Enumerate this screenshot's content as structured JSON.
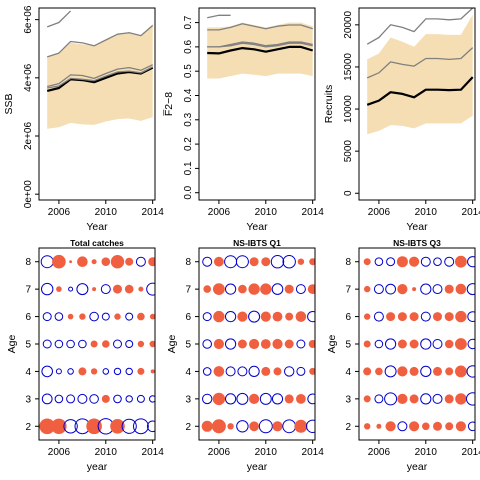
{
  "colors": {
    "band": "#f5deb3",
    "median": "#000000",
    "percentile": "#808080",
    "positive_bubble": "#f06040",
    "negative_bubble": "#0000cc",
    "axis": "#000000",
    "background": "#ffffff"
  },
  "chart_data": [
    {
      "type": "area",
      "xlabel": "Year",
      "ylabel": "SSB",
      "x": [
        2005,
        2006,
        2007,
        2008,
        2009,
        2010,
        2011,
        2012,
        2013,
        2014
      ],
      "xlim": [
        2004.3,
        2014.2
      ],
      "ylim": [
        -200000,
        6400000
      ],
      "xticks": [
        2006,
        2010,
        2014
      ],
      "yticks": [
        0,
        2000000,
        4000000,
        6000000
      ],
      "ytick_labels": [
        "0e+00",
        "2e+06",
        "4e+06",
        "6e+06"
      ],
      "ytick_rotated": true,
      "band_lower": [
        2250000,
        2300000,
        2450000,
        2400000,
        2380000,
        2500000,
        2580000,
        2600000,
        2520000,
        2650000
      ],
      "band_upper": [
        4700000,
        4850000,
        5200000,
        5150000,
        5100000,
        5300000,
        5500000,
        5550000,
        5450000,
        5850000
      ],
      "series": [
        {
          "role": "median",
          "values": [
            3550000,
            3650000,
            3950000,
            3920000,
            3850000,
            4000000,
            4150000,
            4200000,
            4150000,
            4350000
          ]
        },
        {
          "role": "p05",
          "values": [
            3700000,
            3800000,
            4100000,
            4080000,
            3980000,
            4150000,
            4300000,
            4350000,
            4260000,
            4450000
          ]
        },
        {
          "role": "p95",
          "values": [
            3650000,
            3720000,
            3980000,
            3950000,
            3900000,
            4060000,
            4200000,
            4230000,
            4170000,
            4380000
          ]
        },
        {
          "role": "high",
          "values": [
            4720000,
            4850000,
            5250000,
            5200000,
            5100000,
            5300000,
            5500000,
            5550000,
            5450000,
            5800000
          ]
        },
        {
          "role": "outlier",
          "values": [
            5750000,
            5900000,
            6300000,
            null,
            null,
            null,
            null,
            null,
            null,
            null
          ]
        }
      ]
    },
    {
      "type": "area",
      "xlabel": "Year",
      "ylabel": "F̅2−8",
      "x": [
        2005,
        2006,
        2007,
        2008,
        2009,
        2010,
        2011,
        2012,
        2013,
        2014
      ],
      "xlim": [
        2004.3,
        2014.2
      ],
      "ylim": [
        -0.03,
        0.76
      ],
      "xticks": [
        2006,
        2010,
        2014
      ],
      "yticks": [
        0.0,
        0.1,
        0.2,
        0.3,
        0.4,
        0.5,
        0.6,
        0.7
      ],
      "ytick_labels": [
        "0.0",
        "0.1",
        "0.2",
        "0.3",
        "0.4",
        "0.5",
        "0.6",
        "0.7"
      ],
      "ytick_rotated": true,
      "band_lower": [
        0.47,
        0.47,
        0.48,
        0.49,
        0.485,
        0.48,
        0.49,
        0.49,
        0.49,
        0.48
      ],
      "band_upper": [
        0.68,
        0.68,
        0.685,
        0.7,
        0.69,
        0.68,
        0.69,
        0.7,
        0.7,
        0.685
      ],
      "series": [
        {
          "role": "median",
          "values": [
            0.575,
            0.573,
            0.585,
            0.595,
            0.59,
            0.58,
            0.59,
            0.6,
            0.6,
            0.585
          ]
        },
        {
          "role": "p05",
          "values": [
            0.6,
            0.6,
            0.61,
            0.62,
            0.615,
            0.605,
            0.61,
            0.62,
            0.62,
            0.61
          ]
        },
        {
          "role": "p95",
          "values": [
            0.6,
            0.6,
            0.605,
            0.615,
            0.61,
            0.6,
            0.605,
            0.615,
            0.615,
            0.605
          ]
        },
        {
          "role": "high",
          "values": [
            0.67,
            0.67,
            0.68,
            0.695,
            0.685,
            0.675,
            0.685,
            0.69,
            0.69,
            0.675
          ]
        },
        {
          "role": "outlier",
          "values": [
            0.72,
            0.73,
            0.73,
            null,
            null,
            null,
            null,
            null,
            null,
            null
          ]
        }
      ]
    },
    {
      "type": "area",
      "xlabel": "Year",
      "ylabel": "Recruits",
      "x": [
        2005,
        2006,
        2007,
        2008,
        2009,
        2010,
        2011,
        2012,
        2013,
        2014
      ],
      "xlim": [
        2004.3,
        2014.2
      ],
      "ylim": [
        -800,
        22000
      ],
      "xticks": [
        2006,
        2010,
        2014
      ],
      "yticks": [
        0,
        5000,
        10000,
        15000,
        20000
      ],
      "ytick_labels": [
        "0",
        "5000",
        "10000",
        "15000",
        "20000"
      ],
      "ytick_rotated": true,
      "band_lower": [
        7000,
        7400,
        8100,
        8000,
        7700,
        8300,
        8300,
        8300,
        8300,
        9200
      ],
      "band_upper": [
        15900,
        16600,
        18500,
        18000,
        17400,
        18900,
        18900,
        18800,
        18800,
        21200
      ],
      "series": [
        {
          "role": "median",
          "values": [
            10500,
            11000,
            12000,
            11800,
            11400,
            12300,
            12300,
            12250,
            12300,
            13800
          ]
        },
        {
          "role": "p05",
          "values": [
            13700,
            14300,
            15600,
            15300,
            15100,
            16000,
            16000,
            15900,
            16000,
            17300
          ]
        },
        {
          "role": "high",
          "values": [
            17700,
            18500,
            20000,
            19700,
            19200,
            20700,
            20700,
            20600,
            20700,
            22000
          ]
        }
      ]
    },
    {
      "type": "scatter",
      "title": "Total catches",
      "xlabel": "year",
      "ylabel": "Age",
      "x": [
        2005,
        2006,
        2007,
        2008,
        2009,
        2010,
        2011,
        2012,
        2013,
        2014
      ],
      "ages": [
        2,
        3,
        4,
        5,
        6,
        7,
        8
      ],
      "xlim": [
        2004.3,
        2014.2
      ],
      "ylim": [
        1.5,
        8.5
      ],
      "xticks": [
        2006,
        2010,
        2014
      ],
      "yticks": [
        2,
        3,
        4,
        5,
        6,
        7,
        8
      ],
      "residuals": [
        [
          3.0,
          2.9,
          -2.2,
          -2.7,
          3.0,
          -2.9,
          2.6,
          -2.5,
          -2.7,
          -1.4
        ],
        [
          -1.2,
          -0.7,
          -0.8,
          -1.0,
          -0.9,
          0.8,
          -0.7,
          -0.5,
          -0.6,
          -0.5
        ],
        [
          -1.4,
          -0.3,
          -0.4,
          0.8,
          0.5,
          -0.4,
          -0.5,
          -0.5,
          0.6,
          0.2
        ],
        [
          -0.8,
          -0.7,
          -0.7,
          -0.7,
          0.6,
          0.7,
          -0.8,
          -0.6,
          0.5,
          0.5
        ],
        [
          -0.8,
          -0.7,
          0.4,
          0.5,
          -0.9,
          -0.6,
          0.5,
          -0.6,
          0.7,
          0.4
        ],
        [
          -1.6,
          0.4,
          -0.2,
          -1.5,
          0.2,
          -1.0,
          1.0,
          0.9,
          0.3,
          -1.8
        ],
        [
          -1.8,
          2.3,
          0.1,
          1.4,
          0.3,
          0.9,
          2.2,
          0.8,
          -1.0,
          1.0
        ]
      ]
    },
    {
      "type": "scatter",
      "title": "NS-IBTS Q1",
      "xlabel": "year",
      "ylabel": "Age",
      "x": [
        2005,
        2006,
        2007,
        2008,
        2009,
        2010,
        2011,
        2012,
        2013,
        2014
      ],
      "ages": [
        2,
        3,
        4,
        5,
        6,
        7,
        8
      ],
      "xlim": [
        2004.3,
        2014.2
      ],
      "ylim": [
        1.5,
        8.5
      ],
      "xticks": [
        2006,
        2010,
        2014
      ],
      "yticks": [
        2,
        3,
        4,
        5,
        6,
        7,
        8
      ],
      "residuals": [
        [
          1.5,
          2.4,
          0.5,
          -1.6,
          1.2,
          -2.1,
          1.3,
          -2.0,
          2.1,
          -1.9
        ],
        [
          -1.1,
          1.9,
          -1.3,
          -1.5,
          1.3,
          -1.5,
          -1.3,
          1.0,
          1.2,
          -1.2
        ],
        [
          -0.7,
          1.4,
          -1.0,
          -1.0,
          -1.3,
          1.0,
          0.8,
          -1.1,
          -0.8,
          0.6
        ],
        [
          -0.9,
          1.3,
          -1.3,
          1.0,
          1.3,
          1.2,
          1.3,
          1.0,
          -0.8,
          0.8
        ],
        [
          -0.8,
          1.6,
          -1.3,
          1.3,
          -1.5,
          1.3,
          1.2,
          0.8,
          1.4,
          -1.3
        ],
        [
          0.7,
          1.7,
          -1.3,
          0.9,
          1.6,
          1.6,
          -1.4,
          1.0,
          -1.0,
          1.2
        ],
        [
          -1.0,
          1.2,
          -1.8,
          -1.8,
          1.0,
          1.0,
          -1.9,
          -1.9,
          0.5,
          0.6
        ]
      ]
    },
    {
      "type": "scatter",
      "title": "NS-IBTS Q3",
      "xlabel": "year",
      "ylabel": "Age",
      "x": [
        2005,
        2006,
        2007,
        2008,
        2009,
        2010,
        2011,
        2012,
        2013,
        2014
      ],
      "ages": [
        2,
        3,
        4,
        5,
        6,
        7,
        8
      ],
      "xlim": [
        2004.3,
        2014.2
      ],
      "ylim": [
        1.5,
        8.5
      ],
      "xticks": [
        2006,
        2010,
        2014
      ],
      "yticks": [
        2,
        3,
        4,
        5,
        6,
        7,
        8
      ],
      "residuals": [
        [
          0.5,
          0.3,
          1.3,
          -1.0,
          1.3,
          0.7,
          1.0,
          0.8,
          1.3,
          -0.9
        ],
        [
          0.6,
          -0.8,
          -1.8,
          1.3,
          1.0,
          -1.3,
          -1.0,
          1.0,
          1.6,
          -1.9
        ],
        [
          0.8,
          0.7,
          -1.5,
          1.3,
          1.0,
          -1.3,
          1.0,
          0.8,
          1.7,
          -1.6
        ],
        [
          0.6,
          -0.7,
          -1.3,
          1.0,
          1.0,
          -1.3,
          -1.0,
          0.9,
          1.7,
          -1.1
        ],
        [
          0.5,
          -1.0,
          1.0,
          1.0,
          1.0,
          -1.0,
          1.0,
          1.0,
          1.6,
          -1.2
        ],
        [
          0.5,
          -1.0,
          -1.2,
          1.3,
          0.2,
          -1.3,
          -1.0,
          1.0,
          1.4,
          -1.5
        ],
        [
          0.6,
          -0.7,
          -0.8,
          1.5,
          1.3,
          -1.0,
          -0.7,
          -1.0,
          1.7,
          -1.3
        ]
      ]
    }
  ]
}
